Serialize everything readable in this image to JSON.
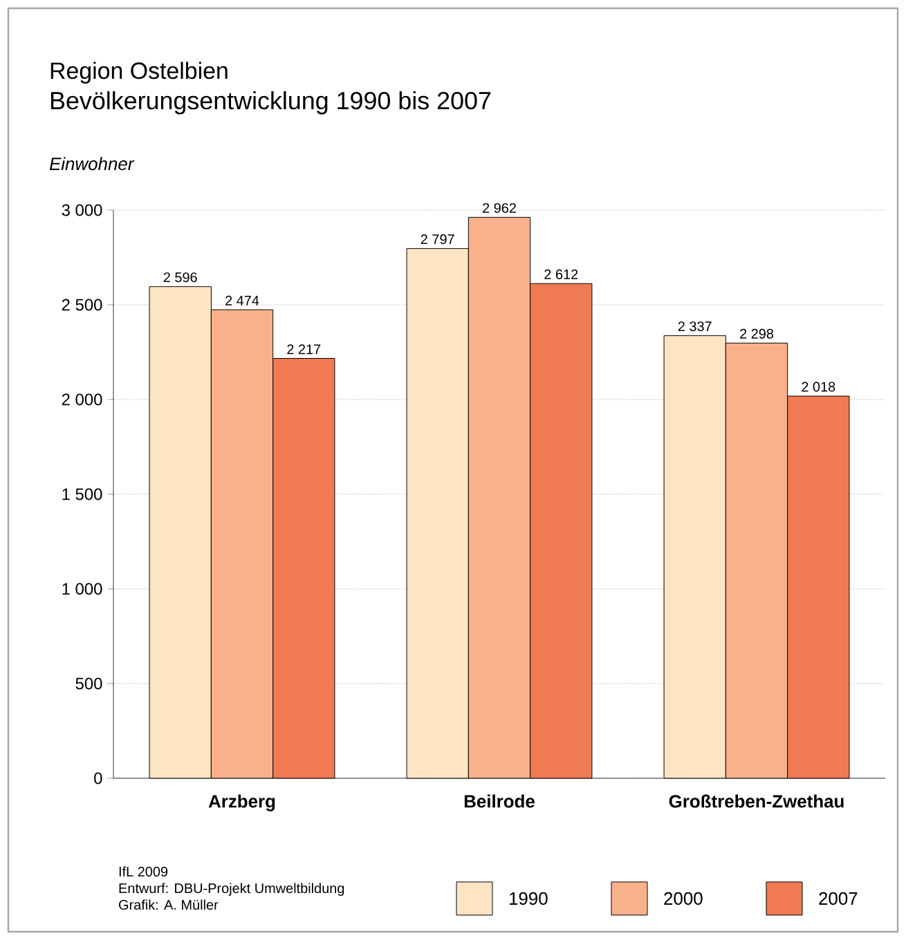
{
  "chart_data": {
    "type": "bar",
    "title": "Region Ostelbien",
    "subtitle": "Bevölkerungsentwicklung 1990 bis 2007",
    "ylabel": "Einwohner",
    "categories": [
      "Arzberg",
      "Beilrode",
      "Großtreben-Zwethau"
    ],
    "series": [
      {
        "name": "1990",
        "color": "#fde4c2",
        "values": [
          2596,
          2797,
          2337
        ],
        "value_labels": [
          "2 596",
          "2 797",
          "2 337"
        ]
      },
      {
        "name": "2000",
        "color": "#f8b18a",
        "values": [
          2474,
          2962,
          2298
        ],
        "value_labels": [
          "2 474",
          "2 962",
          "2 298"
        ]
      },
      {
        "name": "2007",
        "color": "#f07a52",
        "values": [
          2217,
          2612,
          2018
        ],
        "value_labels": [
          "2 217",
          "2 612",
          "2 018"
        ]
      }
    ],
    "ylim": [
      0,
      3000
    ],
    "yticks": [
      {
        "value": 0,
        "label": "0"
      },
      {
        "value": 500,
        "label": "500"
      },
      {
        "value": 1000,
        "label": "1 000"
      },
      {
        "value": 1500,
        "label": "1 500"
      },
      {
        "value": 2000,
        "label": "2 000"
      },
      {
        "value": 2500,
        "label": "2 500"
      },
      {
        "value": 3000,
        "label": "3 000"
      }
    ],
    "grid": "y",
    "legend": "bottom right",
    "annotations": [
      "IfL 2009",
      "Entwurf: DBU-Projekt Umweltbildung",
      "Grafik: A. Müller"
    ]
  }
}
